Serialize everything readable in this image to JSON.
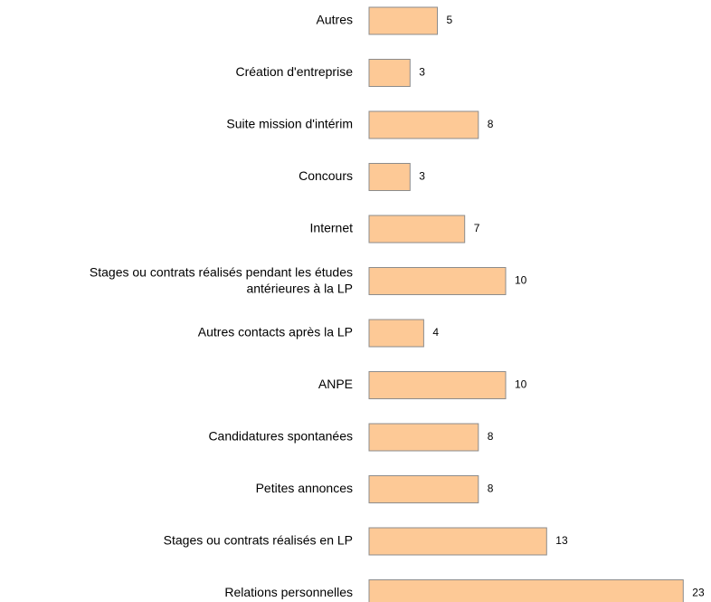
{
  "chart_data": {
    "type": "bar",
    "orientation": "horizontal",
    "color": "#fdc996",
    "categories": [
      "Autres",
      "Création d'entreprise",
      "Suite mission d'intérim",
      "Concours",
      "Internet",
      "Stages ou contrats réalisés pendant les études\nantérieures à la LP",
      "Autres contacts après la LP",
      "ANPE",
      "Candidatures spontanées",
      "Petites annonces",
      "Stages ou contrats réalisés en LP",
      "Relations personnelles"
    ],
    "values": [
      5,
      3,
      8,
      3,
      7,
      10,
      4,
      10,
      8,
      8,
      13,
      23
    ]
  }
}
